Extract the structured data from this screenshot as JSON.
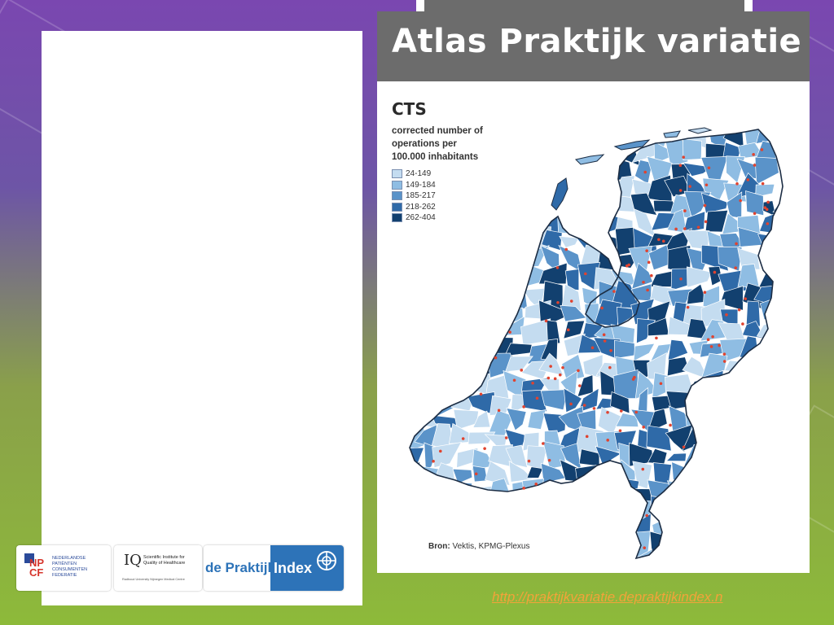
{
  "title": "Atlas Praktijk variatie",
  "map": {
    "heading": "CTS",
    "subtitle": "corrected number of\noperations per\n100.000 inhabitants",
    "legend": [
      {
        "label": "24-149",
        "color": "#c4dcf0"
      },
      {
        "label": "149-184",
        "color": "#8fbde3"
      },
      {
        "label": "185-217",
        "color": "#5a93c9"
      },
      {
        "label": "218-262",
        "color": "#2f6aa8"
      },
      {
        "label": "262-404",
        "color": "#12406f"
      }
    ],
    "source_label": "Bron:",
    "source_text": " Vektis, KPMG-Plexus",
    "marker_color": "#e0432f"
  },
  "logos": {
    "npcf_mark": "NP\nCF",
    "npcf_text": "NEDERLANDSE\nPATIËNTEN\nCONSUMENTEN\nFEDERATIE",
    "iq_mark": "IQ",
    "iq_text": "Scientific Institute for\nQuality of Healthcare",
    "iq_sub": "Radboud University Nijmegen Medical Centre",
    "praktijk_text": "de Praktijk",
    "index_text": "Index"
  },
  "url": "http://praktijkvariatie.depraktijkindex.n"
}
